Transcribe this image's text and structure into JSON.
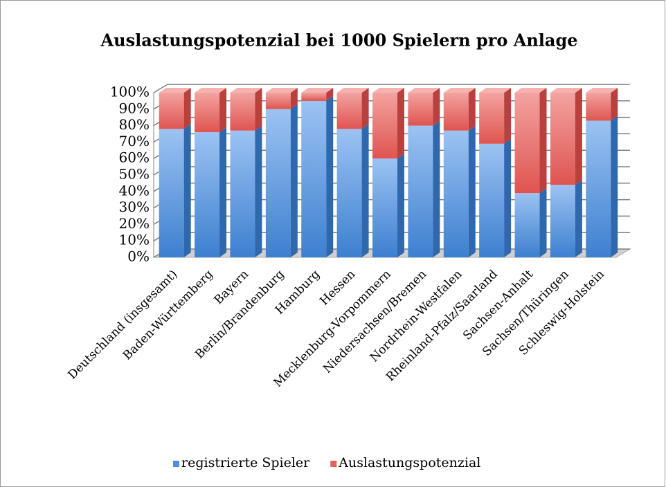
{
  "chart_data": {
    "type": "bar",
    "stacked": true,
    "title": "Auslastungspotenzial bei 1000 Spielern pro Anlage",
    "categories": [
      "Deutschland (insgesamt)",
      "Baden-Württemberg",
      "Bayern",
      "Berlin/Brandenburg",
      "Hamburg",
      "Hessen",
      "Mecklenburg-Vorpommern",
      "Niedersachsen/Bremen",
      "Nordrhein-Westfalen",
      "Rheinland-Pfalz/Saarland",
      "Sachsen-Anhalt",
      "Sachsen/Thüringen",
      "Schleswig-Holstein"
    ],
    "series": [
      {
        "name": "registrierte Spieler",
        "color": "#4f8fdc",
        "values": [
          78,
          76,
          77,
          90,
          95,
          78,
          60,
          80,
          77,
          69,
          39,
          44,
          83
        ]
      },
      {
        "name": "Auslastungspotenzial",
        "color": "#e5605c",
        "values": [
          22,
          24,
          23,
          10,
          5,
          22,
          40,
          20,
          23,
          31,
          61,
          56,
          17
        ]
      }
    ],
    "ylim": [
      0,
      100
    ],
    "yticks": [
      {
        "value": 0,
        "label": "0%"
      },
      {
        "value": 10,
        "label": "10%"
      },
      {
        "value": 20,
        "label": "20%"
      },
      {
        "value": 30,
        "label": "30%"
      },
      {
        "value": 40,
        "label": "40%"
      },
      {
        "value": 50,
        "label": "50%"
      },
      {
        "value": 60,
        "label": "60%"
      },
      {
        "value": 70,
        "label": "70%"
      },
      {
        "value": 80,
        "label": "80%"
      },
      {
        "value": 90,
        "label": "90%"
      },
      {
        "value": 100,
        "label": "100%"
      }
    ],
    "grid": true,
    "legend": "bottom"
  }
}
